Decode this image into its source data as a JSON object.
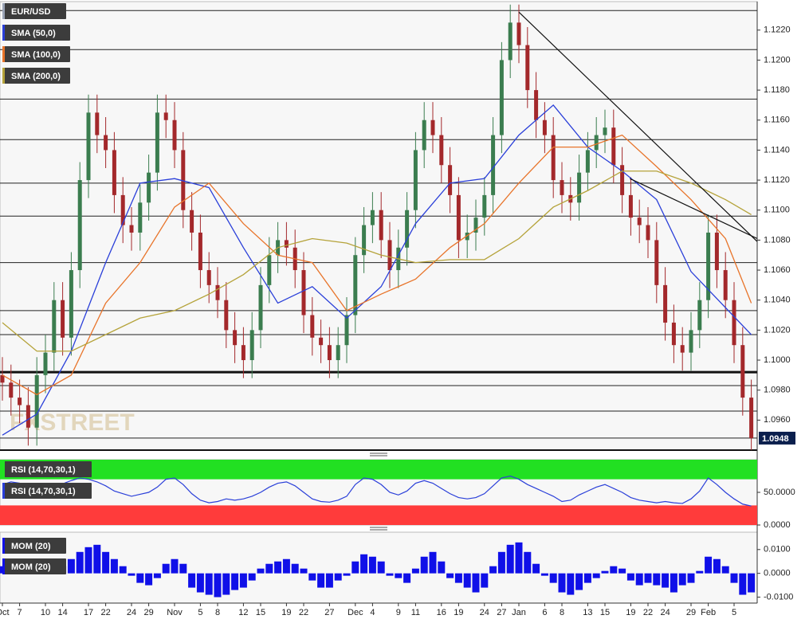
{
  "chart_data": [
    {
      "type": "candlestick",
      "title": "EUR/USD",
      "watermark": "FXSTREET",
      "up_color": "#3b7d4f",
      "down_color": "#a3282b",
      "categories": [
        "Oct",
        null,
        "7",
        null,
        null,
        "10",
        null,
        "14",
        null,
        null,
        "17",
        null,
        "22",
        null,
        null,
        "24",
        null,
        "29",
        null,
        null,
        "Nov",
        null,
        null,
        "5",
        null,
        "8",
        null,
        null,
        "12",
        null,
        "15",
        null,
        null,
        "19",
        null,
        "22",
        null,
        null,
        "27",
        null,
        null,
        "Dec",
        null,
        "4",
        null,
        null,
        "9",
        null,
        "11",
        null,
        null,
        "16",
        null,
        "19",
        null,
        null,
        "24",
        null,
        "27",
        null,
        "Jan",
        null,
        null,
        "6",
        null,
        "8",
        null,
        null,
        "13",
        null,
        "15",
        null,
        null,
        "19",
        null,
        "22",
        null,
        "24",
        null,
        null,
        "29",
        null,
        "Feb",
        null,
        null,
        "5",
        null,
        null
      ],
      "open": [
        1.099,
        1.0985,
        1.0975,
        1.097,
        1.0955,
        1.099,
        1.1005,
        1.104,
        1.1015,
        1.106,
        1.112,
        1.1165,
        1.115,
        1.114,
        1.111,
        1.109,
        1.1085,
        1.1105,
        1.1125,
        1.1165,
        1.116,
        1.114,
        1.11,
        1.1085,
        1.106,
        1.105,
        1.104,
        1.102,
        1.101,
        1.1,
        1.102,
        1.105,
        1.107,
        1.108,
        1.1075,
        1.106,
        1.103,
        1.1015,
        1.101,
        1.1,
        1.101,
        1.103,
        1.107,
        1.109,
        1.11,
        1.108,
        1.106,
        1.1075,
        1.11,
        1.114,
        1.116,
        1.115,
        1.113,
        1.111,
        1.108,
        1.1085,
        1.1095,
        1.111,
        1.115,
        1.12,
        1.1225,
        1.121,
        1.118,
        1.116,
        1.115,
        1.112,
        1.111,
        1.1105,
        1.1125,
        1.114,
        1.115,
        1.1155,
        1.113,
        1.111,
        1.1095,
        1.109,
        1.108,
        1.105,
        1.1025,
        1.101,
        1.1005,
        1.102,
        1.104,
        1.1085,
        1.106,
        1.104,
        1.101,
        1.0975
      ],
      "high": [
        1.1002,
        1.0997,
        1.0987,
        1.0982,
        1.1002,
        1.1017,
        1.1052,
        1.1052,
        1.1072,
        1.1132,
        1.1177,
        1.1177,
        1.1162,
        1.1152,
        1.1122,
        1.1102,
        1.1117,
        1.1137,
        1.1177,
        1.1177,
        1.1172,
        1.1152,
        1.1112,
        1.1097,
        1.1072,
        1.1062,
        1.1052,
        1.1032,
        1.1022,
        1.1032,
        1.1062,
        1.1082,
        1.1092,
        1.1092,
        1.1087,
        1.1072,
        1.1042,
        1.1027,
        1.1022,
        1.1022,
        1.1042,
        1.1082,
        1.1102,
        1.1112,
        1.1112,
        1.1092,
        1.1087,
        1.1112,
        1.1152,
        1.1172,
        1.1172,
        1.1162,
        1.1142,
        1.1122,
        1.1097,
        1.1107,
        1.1122,
        1.1162,
        1.1212,
        1.1237,
        1.1237,
        1.1222,
        1.1192,
        1.1172,
        1.1162,
        1.1132,
        1.1122,
        1.1137,
        1.1152,
        1.1162,
        1.1167,
        1.1167,
        1.1142,
        1.1122,
        1.1107,
        1.1102,
        1.1092,
        1.1062,
        1.1037,
        1.1022,
        1.1032,
        1.1052,
        1.1097,
        1.1097,
        1.1072,
        1.1052,
        1.1022,
        1.0987
      ],
      "low": [
        1.0973,
        1.0963,
        1.0958,
        1.0943,
        1.0943,
        1.0978,
        1.0993,
        1.1003,
        1.1003,
        1.1048,
        1.1108,
        1.1138,
        1.1128,
        1.1098,
        1.1078,
        1.1073,
        1.1073,
        1.1093,
        1.1113,
        1.1148,
        1.1128,
        1.1088,
        1.1073,
        1.1048,
        1.1038,
        1.1028,
        1.1008,
        1.0998,
        1.0988,
        1.0988,
        1.1008,
        1.1038,
        1.1058,
        1.1063,
        1.1048,
        1.1018,
        1.1003,
        1.0998,
        1.0988,
        1.0988,
        1.0998,
        1.1018,
        1.1058,
        1.1078,
        1.1068,
        1.1048,
        1.1048,
        1.1063,
        1.1088,
        1.1128,
        1.1138,
        1.1118,
        1.1098,
        1.1068,
        1.1068,
        1.1073,
        1.1083,
        1.1098,
        1.1138,
        1.1188,
        1.1198,
        1.1168,
        1.1148,
        1.1138,
        1.1108,
        1.1098,
        1.1093,
        1.1093,
        1.1113,
        1.1128,
        1.1138,
        1.1118,
        1.1098,
        1.1083,
        1.1078,
        1.1068,
        1.1038,
        1.1013,
        1.0998,
        1.0993,
        1.0993,
        1.1008,
        1.1028,
        1.1048,
        1.1028,
        1.0998,
        1.0963,
        1.0936
      ],
      "close": [
        1.0985,
        1.0975,
        1.097,
        1.0955,
        1.099,
        1.1005,
        1.104,
        1.1015,
        1.106,
        1.112,
        1.1165,
        1.115,
        1.114,
        1.111,
        1.109,
        1.1085,
        1.1105,
        1.1125,
        1.1165,
        1.116,
        1.114,
        1.11,
        1.1085,
        1.106,
        1.105,
        1.104,
        1.102,
        1.101,
        1.1,
        1.102,
        1.105,
        1.107,
        1.108,
        1.1075,
        1.106,
        1.103,
        1.1015,
        1.101,
        1.1,
        1.101,
        1.103,
        1.107,
        1.109,
        1.11,
        1.108,
        1.106,
        1.1075,
        1.11,
        1.114,
        1.116,
        1.115,
        1.113,
        1.111,
        1.108,
        1.1085,
        1.1095,
        1.111,
        1.115,
        1.12,
        1.1225,
        1.121,
        1.118,
        1.116,
        1.115,
        1.112,
        1.111,
        1.1105,
        1.1125,
        1.114,
        1.115,
        1.1155,
        1.113,
        1.111,
        1.1095,
        1.109,
        1.108,
        1.105,
        1.1025,
        1.101,
        1.1005,
        1.102,
        1.104,
        1.1085,
        1.106,
        1.104,
        1.101,
        1.0975,
        1.0948
      ],
      "series": [
        {
          "name": "SMA (50,0)",
          "color": "#2a3fd9",
          "x": [
            0,
            4,
            8,
            12,
            16,
            20,
            24,
            28,
            32,
            36,
            40,
            44,
            48,
            52,
            56,
            60,
            64,
            68,
            72,
            76,
            80,
            84,
            87
          ],
          "values": [
            1.095,
            1.0964,
            1.1006,
            1.1065,
            1.1118,
            1.1121,
            1.1115,
            1.1075,
            1.1038,
            1.1049,
            1.1028,
            1.1049,
            1.1091,
            1.1118,
            1.1121,
            1.115,
            1.117,
            1.1142,
            1.1126,
            1.1107,
            1.1059,
            1.1035,
            1.1017
          ]
        },
        {
          "name": "SMA (100,0)",
          "color": "#e8742a",
          "x": [
            0,
            4,
            8,
            12,
            16,
            20,
            24,
            28,
            32,
            36,
            40,
            44,
            48,
            52,
            56,
            60,
            64,
            68,
            72,
            76,
            80,
            84,
            87
          ],
          "values": [
            1.099,
            1.0977,
            1.099,
            1.1038,
            1.1065,
            1.1102,
            1.1118,
            1.1091,
            1.107,
            1.1065,
            1.1033,
            1.1044,
            1.1054,
            1.1075,
            1.1091,
            1.1118,
            1.1142,
            1.1142,
            1.115,
            1.1129,
            1.1107,
            1.1081,
            1.1038
          ]
        },
        {
          "name": "SMA (200,0)",
          "color": "#b5a33a",
          "x": [
            0,
            4,
            8,
            12,
            16,
            20,
            24,
            28,
            32,
            36,
            40,
            44,
            48,
            52,
            56,
            60,
            64,
            68,
            72,
            76,
            80,
            84,
            87
          ],
          "values": [
            1.1025,
            1.1006,
            1.1006,
            1.1017,
            1.1028,
            1.1033,
            1.1044,
            1.1057,
            1.1075,
            1.1081,
            1.1078,
            1.107,
            1.1065,
            1.1067,
            1.1067,
            1.1081,
            1.1102,
            1.1113,
            1.1126,
            1.1126,
            1.1118,
            1.1107,
            1.1097
          ]
        }
      ],
      "levels": [
        1.1233,
        1.1207,
        1.1174,
        1.1147,
        1.1118,
        1.1096,
        1.1065,
        1.1033,
        1.1017,
        1.0983,
        1.0966,
        1.0948
      ],
      "key_level": 1.0992,
      "trendlines": [
        {
          "x": [
            60,
            87.7
          ],
          "values": [
            1.1232,
            1.1079
          ]
        },
        {
          "x": [
            72.9,
            87.7
          ],
          "values": [
            1.1121,
            1.1081
          ]
        }
      ],
      "last_price": {
        "value": 1.0948,
        "label": "1.0948"
      },
      "ylim": [
        1.094,
        1.1239
      ],
      "yticks": [
        {
          "value": 1.122,
          "label": "1.1220"
        },
        {
          "value": 1.12,
          "label": "1.1200"
        },
        {
          "value": 1.118,
          "label": "1.1180"
        },
        {
          "value": 1.116,
          "label": "1.1160"
        },
        {
          "value": 1.114,
          "label": "1.1140"
        },
        {
          "value": 1.112,
          "label": "1.1120"
        },
        {
          "value": 1.11,
          "label": "1.1100"
        },
        {
          "value": 1.108,
          "label": "1.1080"
        },
        {
          "value": 1.106,
          "label": "1.1060"
        },
        {
          "value": 1.104,
          "label": "1.1040"
        },
        {
          "value": 1.102,
          "label": "1.1020"
        },
        {
          "value": 1.1,
          "label": "1.1000"
        },
        {
          "value": 1.098,
          "label": "1.0980"
        },
        {
          "value": 1.096,
          "label": "1.0960"
        }
      ]
    },
    {
      "type": "line",
      "title": "RSI (14,70,30,1)",
      "color": "#2a3fd9",
      "overbought": 70,
      "oversold": 30,
      "overbought_color": "#22e022",
      "oversold_color": "#ff3b3b",
      "values": [
        62,
        66,
        64,
        60,
        58,
        62,
        60,
        63,
        68,
        72,
        70,
        66,
        60,
        52,
        48,
        44,
        47,
        50,
        58,
        70,
        72,
        62,
        48,
        38,
        34,
        36,
        40,
        38,
        40,
        44,
        50,
        58,
        64,
        66,
        60,
        50,
        40,
        36,
        35,
        38,
        44,
        62,
        72,
        70,
        62,
        50,
        46,
        52,
        64,
        68,
        64,
        56,
        48,
        42,
        40,
        42,
        48,
        60,
        72,
        75,
        70,
        62,
        56,
        50,
        44,
        36,
        38,
        46,
        52,
        58,
        62,
        56,
        50,
        42,
        38,
        36,
        34,
        36,
        34,
        33,
        40,
        52,
        72,
        62,
        50,
        40,
        32,
        29
      ],
      "ylim": [
        0,
        100
      ],
      "yticks": [
        {
          "value": 50,
          "label": "50.0000"
        },
        {
          "value": 0,
          "label": "0.0000"
        }
      ]
    },
    {
      "type": "bar",
      "title": "MOM (20)",
      "color": "#1010e8",
      "values": [
        0.003,
        0.0035,
        0.004,
        0.004,
        0.005,
        0.004,
        0.002,
        0.003,
        0.006,
        0.009,
        0.011,
        0.012,
        0.009,
        0.006,
        0.003,
        -0.001,
        -0.004,
        -0.005,
        -0.002,
        0.004,
        0.006,
        0.004,
        -0.006,
        -0.008,
        -0.009,
        -0.01,
        -0.009,
        -0.007,
        -0.006,
        -0.003,
        0.002,
        0.004,
        0.005,
        0.006,
        0.004,
        0.002,
        -0.003,
        -0.006,
        -0.006,
        -0.003,
        -0.001,
        0.005,
        0.008,
        0.007,
        0.005,
        -0.001,
        -0.002,
        -0.004,
        0.002,
        0.007,
        0.009,
        0.005,
        -0.002,
        -0.004,
        -0.006,
        -0.008,
        -0.006,
        0.003,
        0.009,
        0.012,
        0.013,
        0.009,
        0.004,
        -0.001,
        -0.004,
        -0.008,
        -0.009,
        -0.007,
        -0.004,
        -0.002,
        0.001,
        0.003,
        0.002,
        -0.003,
        -0.005,
        -0.004,
        -0.005,
        -0.006,
        -0.008,
        -0.005,
        -0.004,
        0.001,
        0.007,
        0.006,
        0.003,
        -0.004,
        -0.009,
        -0.008
      ],
      "ylim": [
        -0.0125,
        0.0173
      ],
      "yticks": [
        {
          "value": 0.01,
          "label": "0.0100"
        },
        {
          "value": 0,
          "label": "0.0000"
        },
        {
          "value": -0.01,
          "label": "-0.0100"
        }
      ]
    }
  ]
}
